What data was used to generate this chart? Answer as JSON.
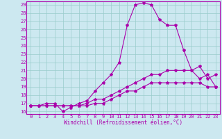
{
  "title": "",
  "xlabel": "Windchill (Refroidissement éolien,°C)",
  "bg_color": "#cce8f0",
  "line_color": "#aa00aa",
  "grid_color": "#99cccc",
  "xlim": [
    -0.5,
    23.5
  ],
  "ylim": [
    15.7,
    29.4
  ],
  "yticks": [
    16,
    17,
    18,
    19,
    20,
    21,
    22,
    23,
    24,
    25,
    26,
    27,
    28,
    29
  ],
  "xticks": [
    0,
    1,
    2,
    3,
    4,
    5,
    6,
    7,
    8,
    9,
    10,
    11,
    12,
    13,
    14,
    15,
    16,
    17,
    18,
    19,
    20,
    21,
    22,
    23
  ],
  "line1_x": [
    0,
    1,
    2,
    3,
    4,
    5,
    6,
    7,
    8,
    9,
    10,
    11,
    12,
    13,
    14,
    15,
    16,
    17,
    18,
    19,
    20,
    21,
    22,
    23
  ],
  "line1_y": [
    16.7,
    16.7,
    17.0,
    17.0,
    16.0,
    16.5,
    17.0,
    17.3,
    18.5,
    19.5,
    20.5,
    22.0,
    26.5,
    29.0,
    29.2,
    29.0,
    27.2,
    26.5,
    26.5,
    23.5,
    21.0,
    20.0,
    20.5,
    19.0
  ],
  "line2_x": [
    0,
    1,
    2,
    3,
    4,
    5,
    6,
    7,
    8,
    9,
    10,
    11,
    12,
    13,
    14,
    15,
    16,
    17,
    18,
    19,
    20,
    21,
    22,
    23
  ],
  "line2_y": [
    16.7,
    16.7,
    16.7,
    16.7,
    16.7,
    16.7,
    16.7,
    17.0,
    17.5,
    17.5,
    18.0,
    18.5,
    19.0,
    19.5,
    20.0,
    20.5,
    20.5,
    21.0,
    21.0,
    21.0,
    21.0,
    21.5,
    20.0,
    20.5
  ],
  "line3_x": [
    0,
    1,
    2,
    3,
    4,
    5,
    6,
    7,
    8,
    9,
    10,
    11,
    12,
    13,
    14,
    15,
    16,
    17,
    18,
    19,
    20,
    21,
    22,
    23
  ],
  "line3_y": [
    16.7,
    16.7,
    16.7,
    16.7,
    16.7,
    16.7,
    16.7,
    16.7,
    17.0,
    17.0,
    17.5,
    18.0,
    18.5,
    18.5,
    19.0,
    19.5,
    19.5,
    19.5,
    19.5,
    19.5,
    19.5,
    19.5,
    19.0,
    19.0
  ],
  "tick_fontsize": 5.0,
  "xlabel_fontsize": 5.5,
  "marker_size": 3.0,
  "line_width": 0.8
}
